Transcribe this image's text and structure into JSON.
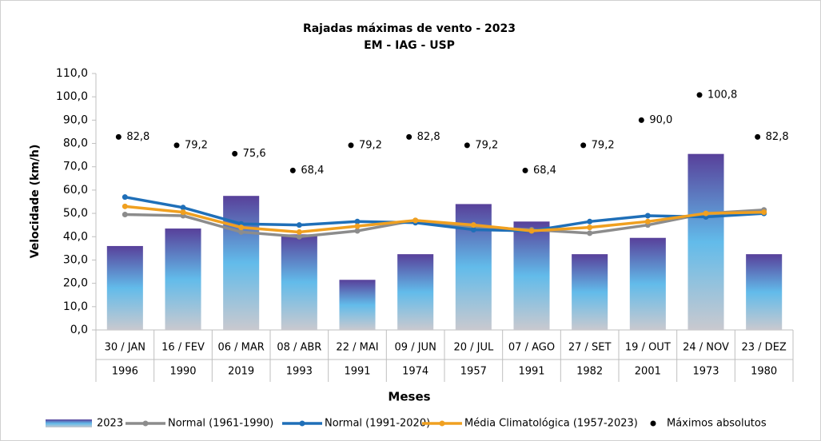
{
  "chart_data": {
    "type": "bar",
    "title": "Rajadas máximas de vento - 2023",
    "subtitle": "EM - IAG - USP",
    "y_label": "Velocidade (km/h)",
    "x_label": "Meses",
    "categories": [
      "30 / JAN",
      "16 / FEV",
      "06 / MAR",
      "08 / ABR",
      "22 / MAI",
      "09 / JUN",
      "20 / JUL",
      "07 / AGO",
      "27 / SET",
      "19 / OUT",
      "24 / NOV",
      "23 / DEZ"
    ],
    "years": [
      "1996",
      "1990",
      "2019",
      "1993",
      "1991",
      "1974",
      "1957",
      "1991",
      "1982",
      "2001",
      "1973",
      "1980"
    ],
    "ylim": [
      0,
      110
    ],
    "yticks": [
      {
        "value": 0,
        "label": "0,0"
      },
      {
        "value": 10,
        "label": "10,0"
      },
      {
        "value": 20,
        "label": "20,0"
      },
      {
        "value": 30,
        "label": "30,0"
      },
      {
        "value": 40,
        "label": "40,0"
      },
      {
        "value": 50,
        "label": "50,0"
      },
      {
        "value": 60,
        "label": "60,0"
      },
      {
        "value": 70,
        "label": "70,0"
      },
      {
        "value": 80,
        "label": "80,0"
      },
      {
        "value": 90,
        "label": "90,0"
      },
      {
        "value": 100,
        "label": "100,0"
      },
      {
        "value": 110,
        "label": "110,0"
      }
    ],
    "legend": "bottom",
    "series": [
      {
        "name": "2023",
        "type": "bar",
        "color": "#62bbea",
        "gradient": [
          "#58409a",
          "#62bbea",
          "#c9c9cf"
        ],
        "values": [
          36,
          43.5,
          57.5,
          41,
          21.5,
          32.5,
          54,
          46.5,
          32.5,
          39.5,
          75.5,
          32.5
        ]
      },
      {
        "name": "Normal (1961-1990)",
        "type": "line",
        "color": "#8c8c8c",
        "values": [
          49.5,
          49,
          42,
          40,
          42.5,
          47,
          44,
          43,
          41.5,
          45,
          50,
          51.5
        ]
      },
      {
        "name": "Normal (1991-2020)",
        "type": "line",
        "color": "#1f6fb8",
        "values": [
          57,
          52.5,
          45.5,
          45,
          46.5,
          46,
          43,
          42.5,
          46.5,
          49,
          48.5,
          50
        ]
      },
      {
        "name": "Média Climatológica (1957-2023)",
        "type": "line",
        "color": "#f0a020",
        "values": [
          53,
          50.5,
          44,
          42,
          44.5,
          47,
          45,
          42.5,
          44,
          46.5,
          50,
          50.5
        ]
      },
      {
        "name": "Máximos absolutos",
        "type": "scatter",
        "color": "#000000",
        "values": [
          82.8,
          79.2,
          75.6,
          68.4,
          79.2,
          82.8,
          79.2,
          68.4,
          79.2,
          90.0,
          100.8,
          82.8
        ],
        "value_labels": [
          "82,8",
          "79,2",
          "75,6",
          "68,4",
          "79,2",
          "82,8",
          "79,2",
          "68,4",
          "79,2",
          "90,0",
          "100,8",
          "82,8"
        ]
      }
    ]
  }
}
